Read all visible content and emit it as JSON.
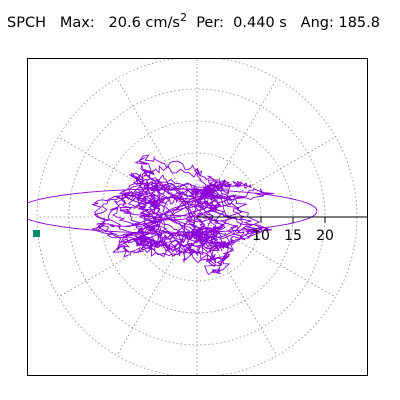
{
  "header": {
    "station": "SPCH",
    "max_label": "Max:",
    "max_value": "20.6",
    "max_unit": "cm/s",
    "max_unit_exp": "2",
    "per_label": "Per:",
    "per_value": "0.440 s",
    "ang_label": "Ang:",
    "ang_value": "185.8"
  },
  "colors": {
    "trace": "#8B00D8",
    "marker": "#008B72",
    "grid": "#888888",
    "axis": "#000000"
  },
  "chart_data": {
    "type": "scatter",
    "polar": true,
    "title": "",
    "radial_ticks": [
      "10",
      "15",
      "20"
    ],
    "radial_tick_values": [
      10,
      15,
      20
    ],
    "rlim": [
      0,
      25
    ],
    "grid_rings": [
      5,
      10,
      15,
      20,
      25
    ],
    "grid_spokes_deg": [
      0,
      30,
      60,
      90,
      120,
      150,
      180,
      210,
      240,
      270,
      300,
      330
    ],
    "peak": {
      "magnitude": 20.6,
      "angle_deg": 185.8
    },
    "grid": true
  }
}
